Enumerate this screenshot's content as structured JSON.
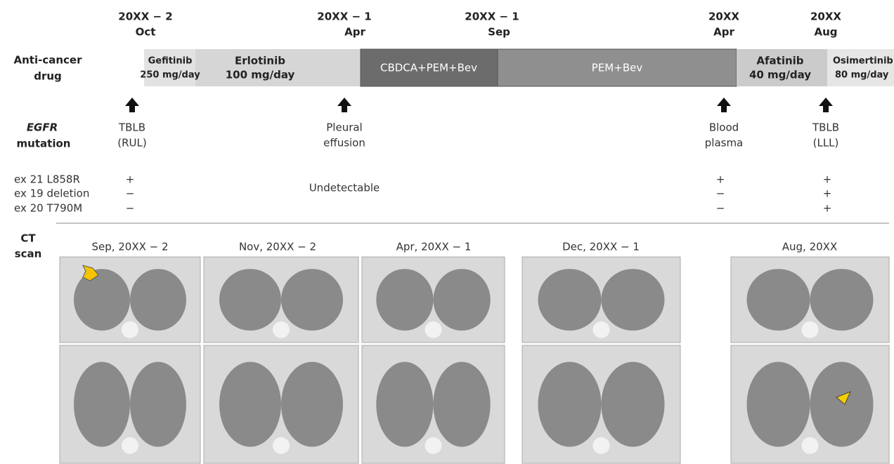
{
  "timeline": {
    "dates": [
      {
        "year": "20XX − 2",
        "month": "Oct"
      },
      {
        "year": "20XX − 1",
        "month": "Apr"
      },
      {
        "year": "20XX − 1",
        "month": "Sep"
      },
      {
        "year": "20XX",
        "month": "Apr"
      },
      {
        "year": "20XX",
        "month": "Aug"
      }
    ]
  },
  "drug_row": {
    "label": [
      "Anti-cancer",
      "drug"
    ],
    "drugs": [
      {
        "name": "Gefitinib",
        "dose": "250 mg/day"
      },
      {
        "name": "Erlotinib",
        "dose": "100 mg/day"
      },
      {
        "name": "CBDCA+PEM+Bev"
      },
      {
        "name": "PEM+Bev"
      },
      {
        "name": "Afatinib",
        "dose": "40 mg/day"
      },
      {
        "name": "Osimertinib",
        "dose": "80 mg/day"
      }
    ]
  },
  "egfr": {
    "label_gene": "EGFR",
    "label_word": "mutation",
    "samples": [
      [
        "TBLB",
        "(RUL)"
      ],
      [
        "Pleural",
        "effusion"
      ],
      [
        "Blood",
        "plasma"
      ],
      [
        "TBLB",
        "(LLL)"
      ]
    ],
    "mutations": [
      "ex 21 L858R",
      "ex 19 deletion",
      "ex 20 T790M"
    ],
    "results": [
      [
        "+",
        "−",
        "−"
      ],
      [
        "+",
        "−",
        "−"
      ],
      [
        "+",
        "+",
        "+"
      ]
    ],
    "undetectable": "Undetectable"
  },
  "ct": {
    "label": [
      "CT",
      "scan"
    ],
    "dates": [
      "Sep, 20XX − 2",
      "Nov, 20XX − 2",
      "Apr, 20XX − 1",
      "Dec, 20XX − 1",
      "Aug, 20XX"
    ]
  }
}
